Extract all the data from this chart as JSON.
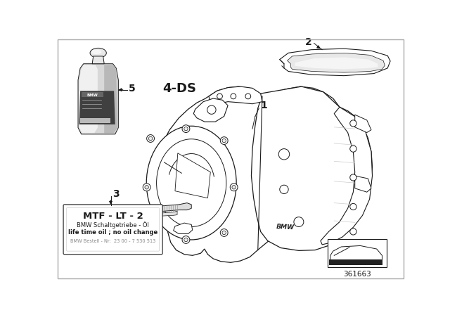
{
  "bg_color": "#ffffff",
  "line_color": "#1a1a1a",
  "label_1": "1",
  "label_2": "2",
  "label_3": "3",
  "label_5": "5",
  "label_4ds": "4-DS",
  "box_text_line1": "MTF - LT - 2",
  "box_text_line2": "BMW Schaltgetriebe - Öl",
  "box_text_line3": "life time oil ; no oil change",
  "box_text_line4": "BMW Bestell - Nr:  23 00 - 7 530 513",
  "diagram_id": "361663"
}
